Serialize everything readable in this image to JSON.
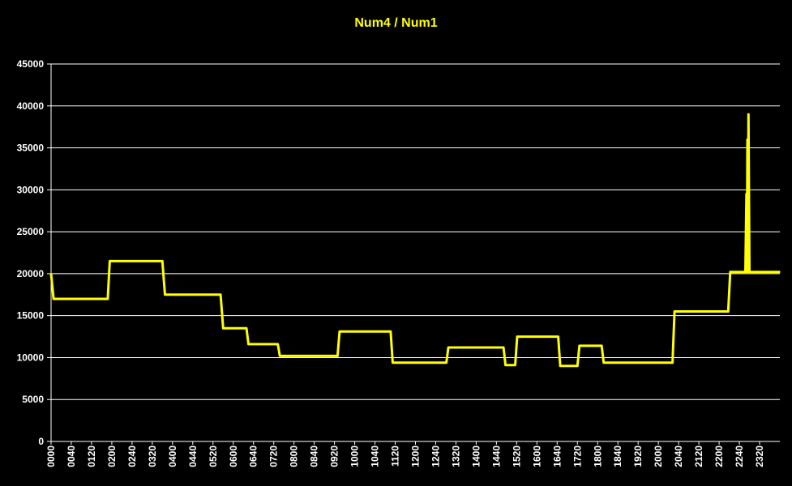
{
  "colors": {
    "background": "#000000",
    "text": "#ffffff",
    "title": "#ffff00",
    "series": "#ffff00",
    "grid": "#ffffff"
  },
  "chart_data": {
    "type": "line",
    "title": "Num4 / Num1",
    "xlabel": "",
    "ylabel": "",
    "ylim": [
      0,
      45000
    ],
    "yticks": [
      0,
      5000,
      10000,
      15000,
      20000,
      25000,
      30000,
      35000,
      40000,
      45000
    ],
    "xlim": [
      0,
      1440
    ],
    "x_unit": "minutes since 0000",
    "xtick_labels": [
      "0000",
      "0040",
      "0120",
      "0200",
      "0240",
      "0320",
      "0400",
      "0440",
      "0520",
      "0600",
      "0640",
      "0720",
      "0800",
      "0840",
      "0920",
      "1000",
      "1040",
      "1120",
      "1200",
      "1240",
      "1320",
      "1400",
      "1440",
      "1520",
      "1600",
      "1640",
      "1720",
      "1800",
      "1840",
      "1920",
      "2000",
      "2040",
      "2120",
      "2200",
      "2240",
      "2320"
    ],
    "grid": true,
    "legend": "none",
    "series": [
      {
        "name": "",
        "points": [
          [
            0,
            20000
          ],
          [
            5,
            17000
          ],
          [
            112,
            17000
          ],
          [
            116,
            21500
          ],
          [
            220,
            21500
          ],
          [
            225,
            17500
          ],
          [
            335,
            17500
          ],
          [
            340,
            13500
          ],
          [
            386,
            13500
          ],
          [
            390,
            11600
          ],
          [
            448,
            11600
          ],
          [
            452,
            10200
          ],
          [
            566,
            10200
          ],
          [
            570,
            13100
          ],
          [
            671,
            13100
          ],
          [
            675,
            9400
          ],
          [
            781,
            9400
          ],
          [
            785,
            11200
          ],
          [
            894,
            11200
          ],
          [
            898,
            9100
          ],
          [
            917,
            9100
          ],
          [
            921,
            12500
          ],
          [
            1002,
            12500
          ],
          [
            1006,
            9000
          ],
          [
            1040,
            9000
          ],
          [
            1044,
            11400
          ],
          [
            1088,
            11400
          ],
          [
            1092,
            9400
          ],
          [
            1228,
            9400
          ],
          [
            1232,
            15500
          ],
          [
            1338,
            15500
          ],
          [
            1342,
            20200
          ],
          [
            1372,
            20200
          ],
          [
            1374,
            29500
          ],
          [
            1375,
            20200
          ],
          [
            1376,
            36000
          ],
          [
            1377,
            20200
          ],
          [
            1378,
            39000
          ],
          [
            1380,
            20200
          ],
          [
            1440,
            20200
          ]
        ]
      }
    ]
  }
}
